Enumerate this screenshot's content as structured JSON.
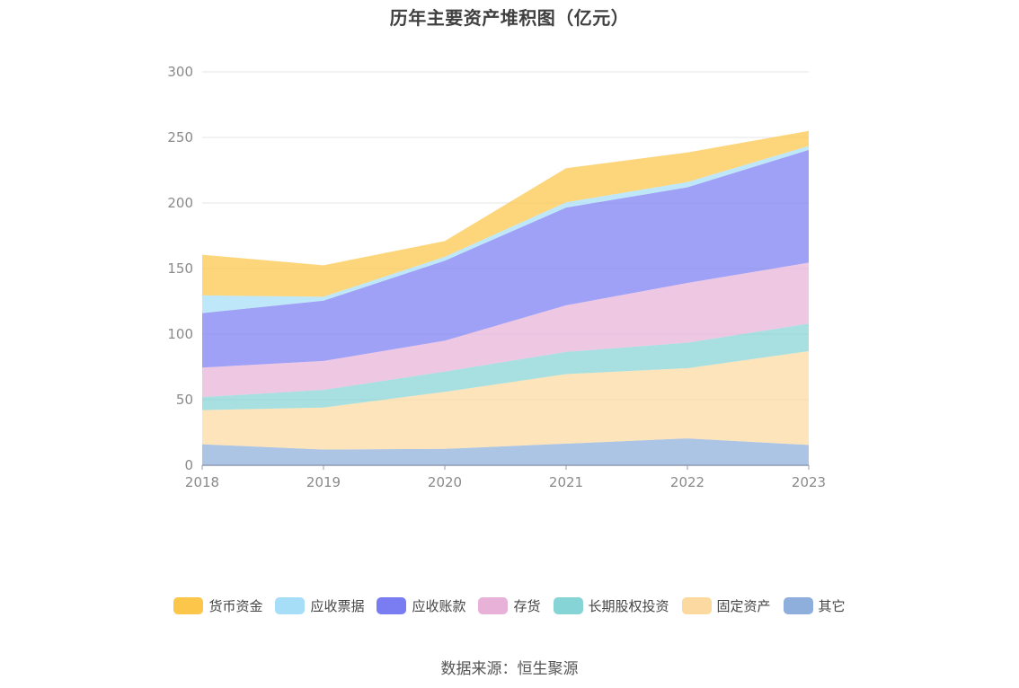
{
  "chart_data": {
    "type": "area",
    "stacked": true,
    "title": "历年主要资产堆积图（亿元）",
    "x": [
      "2018",
      "2019",
      "2020",
      "2021",
      "2022",
      "2023"
    ],
    "ylim": [
      0,
      300
    ],
    "yticks": [
      "0",
      "50",
      "100",
      "150",
      "200",
      "250",
      "300"
    ],
    "grid": true,
    "legend_position": "bottom",
    "series": [
      {
        "name": "其它",
        "color": "#8eaedb",
        "values": [
          16,
          12,
          12.5,
          16.5,
          20.5,
          15.5
        ]
      },
      {
        "name": "固定资产",
        "color": "#fcd9a0",
        "values": [
          26,
          32,
          43.5,
          53,
          53.5,
          71.5
        ]
      },
      {
        "name": "长期股权投资",
        "color": "#86d4d6",
        "values": [
          10,
          13.5,
          15.5,
          17,
          19.5,
          21
        ]
      },
      {
        "name": "存货",
        "color": "#e8b2d8",
        "values": [
          22.5,
          22,
          23.5,
          35.5,
          45.5,
          46.5
        ]
      },
      {
        "name": "应收账款",
        "color": "#7a7df2",
        "values": [
          41.5,
          46,
          61,
          74.5,
          73,
          86
        ]
      },
      {
        "name": "应收票据",
        "color": "#a6def8",
        "values": [
          13.5,
          3,
          3,
          4,
          4,
          3
        ]
      },
      {
        "name": "货币资金",
        "color": "#fcc64a",
        "values": [
          31,
          24,
          12,
          26,
          22.5,
          11.5
        ]
      }
    ]
  },
  "legend": {
    "items": [
      {
        "label": "货币资金",
        "color": "#fcc64a"
      },
      {
        "label": "应收票据",
        "color": "#a6def8"
      },
      {
        "label": "应收账款",
        "color": "#7a7df2"
      },
      {
        "label": "存货",
        "color": "#e8b2d8"
      },
      {
        "label": "长期股权投资",
        "color": "#86d4d6"
      },
      {
        "label": "固定资产",
        "color": "#fcd9a0"
      },
      {
        "label": "其它",
        "color": "#8eaedb"
      }
    ]
  },
  "footer": {
    "source": "数据来源：恒生聚源"
  }
}
